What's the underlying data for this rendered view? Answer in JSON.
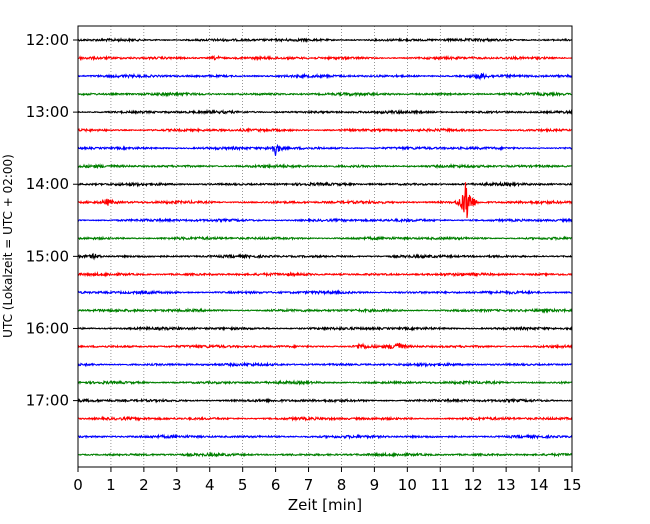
{
  "chart_data": {
    "type": "line",
    "xlabel": "Zeit  [min]",
    "ylabel": "UTC (Lokalzeit = UTC + 02:00)",
    "xlim": [
      0,
      15
    ],
    "x_ticks": [
      0,
      1,
      2,
      3,
      4,
      5,
      6,
      7,
      8,
      9,
      10,
      11,
      12,
      13,
      14,
      15
    ],
    "y_tick_labels": [
      "12:00",
      "13:00",
      "14:00",
      "15:00",
      "16:00",
      "17:00"
    ],
    "vertical_grid": "dotted",
    "trace_interval_min": 15,
    "trace_colors": [
      "#000000",
      "#ff0000",
      "#0000ff",
      "#008000"
    ],
    "trace_start_times": [
      "12:00",
      "12:15",
      "12:30",
      "12:45",
      "13:00",
      "13:15",
      "13:30",
      "13:45",
      "14:00",
      "14:15",
      "14:30",
      "14:45",
      "15:00",
      "15:15",
      "15:30",
      "15:45",
      "16:00",
      "16:15",
      "16:30",
      "16:45",
      "17:00",
      "17:15",
      "17:30",
      "17:45"
    ],
    "events": [
      {
        "trace": 1,
        "minute": 4.2,
        "amplitude": 2.5
      },
      {
        "trace": 2,
        "minute": 12.2,
        "amplitude": 3
      },
      {
        "trace": 6,
        "minute": 6.0,
        "amplitude": 7
      },
      {
        "trace": 9,
        "minute": 0.9,
        "amplitude": 3
      },
      {
        "trace": 9,
        "minute": 11.8,
        "amplitude": 26
      },
      {
        "trace": 12,
        "minute": 0.5,
        "amplitude": 2.5
      },
      {
        "trace": 17,
        "minute": 9.7,
        "amplitude": 5
      },
      {
        "trace": 17,
        "minute": 8.6,
        "amplitude": 3
      }
    ]
  }
}
